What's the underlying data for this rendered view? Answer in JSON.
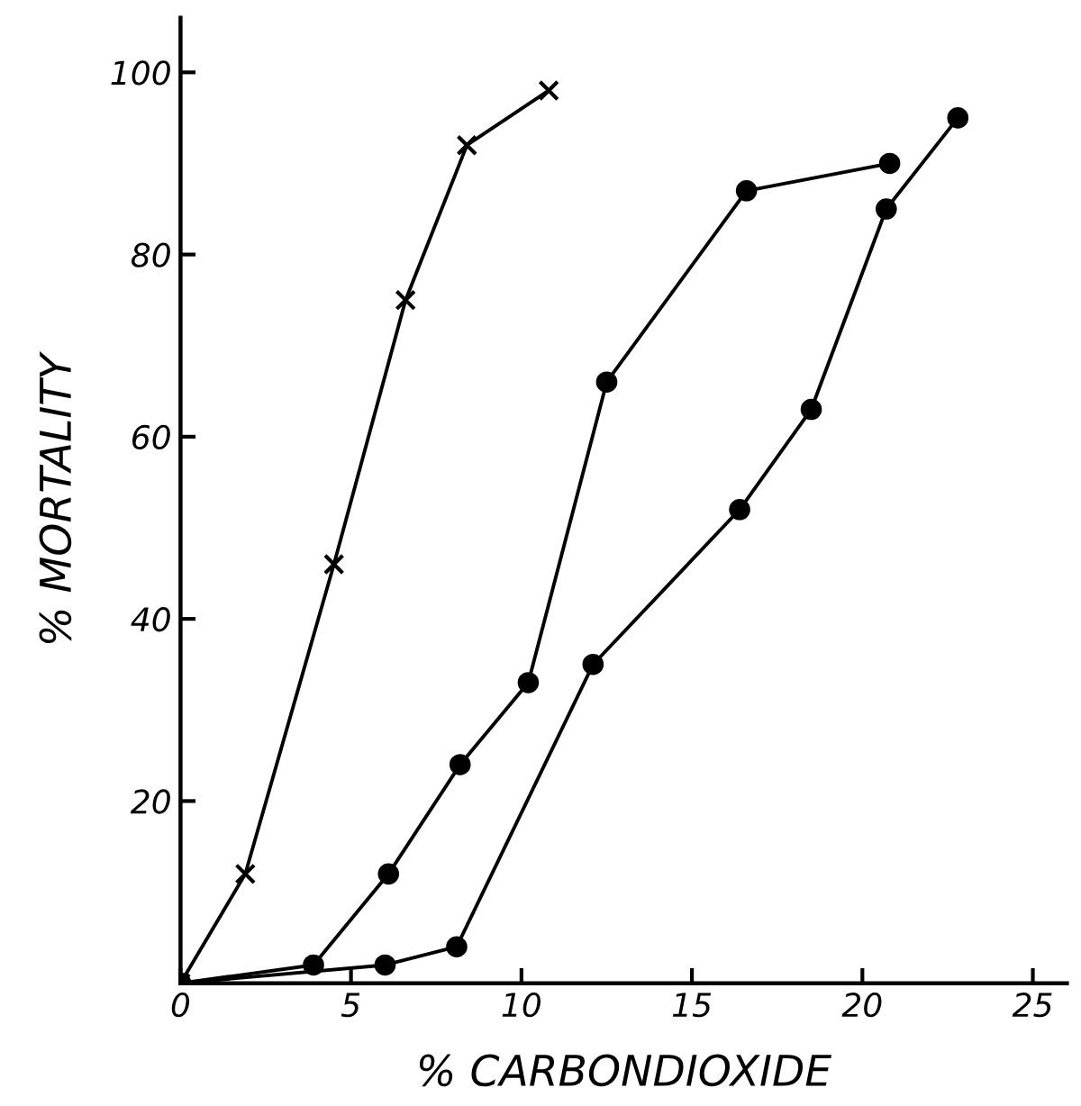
{
  "chart_data": {
    "type": "line",
    "xlabel": "% CARBONDIOXIDE",
    "ylabel": "% MORTALITY",
    "xlim": [
      0,
      26
    ],
    "ylim": [
      0,
      106
    ],
    "xticks": [
      0,
      5,
      10,
      15,
      20,
      25
    ],
    "yticks": [
      {
        "value": 0,
        "label": null
      },
      20,
      40,
      60,
      80,
      100
    ],
    "grid": false,
    "legend": false,
    "series": [
      {
        "color": "#000000",
        "marker": "cross",
        "x": [
          0,
          1.9,
          4.5,
          6.6,
          8.4,
          10.8
        ],
        "values": [
          0,
          12,
          46,
          75,
          92,
          98
        ]
      },
      {
        "color": "#000000",
        "marker": "circle",
        "x": [
          0,
          3.9,
          6.1,
          8.2,
          10.2,
          12.5,
          16.6,
          20.8
        ],
        "values": [
          0,
          2,
          12,
          24,
          33,
          66,
          87,
          90
        ]
      },
      {
        "color": "#000000",
        "marker": "circle",
        "x": [
          0,
          6.0,
          8.1,
          12.1,
          16.4,
          18.5,
          20.7,
          22.8
        ],
        "values": [
          0,
          2,
          4,
          35,
          52,
          63,
          85,
          95
        ]
      }
    ]
  }
}
